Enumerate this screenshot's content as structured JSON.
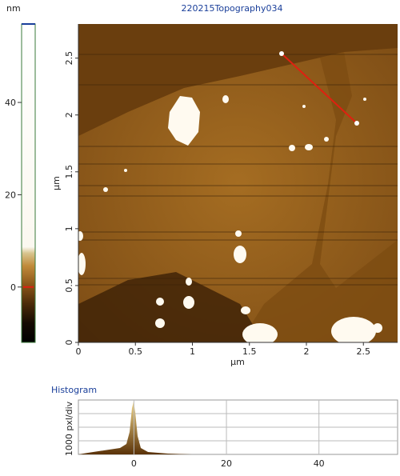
{
  "title": "220215Topography034",
  "colorbar": {
    "unit": "nm",
    "lim": [
      -12,
      57
    ],
    "ticks": [
      0,
      20,
      40
    ]
  },
  "image": {
    "xlabel": "µm",
    "ylabel": "µm",
    "xlim": [
      0,
      2.8
    ],
    "ylim": [
      0,
      2.8
    ],
    "xticks": [
      0,
      0.5,
      1,
      1.5,
      2,
      2.5
    ],
    "yticks": [
      0,
      0.5,
      1,
      1.5,
      2,
      2.5
    ]
  },
  "histogram": {
    "title": "Histogram",
    "ylabel": "1000 pxl/div",
    "xlim": [
      -12,
      57
    ],
    "xticks": [
      0,
      20,
      40
    ]
  }
}
